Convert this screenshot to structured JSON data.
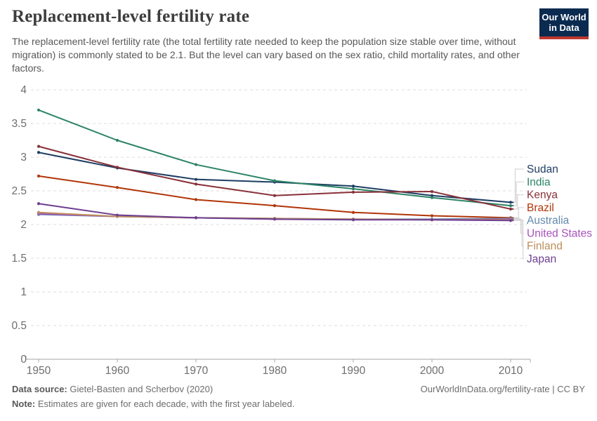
{
  "header": {
    "title": "Replacement-level fertility rate",
    "subtitle": "The replacement-level fertility rate (the total fertility rate needed to keep the population size stable over time, without migration) is commonly stated to be 2.1. But the level can vary based on the sex ratio, child mortality rates, and other factors."
  },
  "logo": {
    "line1": "Our World",
    "line2": "in Data",
    "bg": "#0a2a50",
    "bar": "#c0372e"
  },
  "chart_data": {
    "type": "line",
    "title": "Replacement-level fertility rate",
    "xlabel": "",
    "ylabel": "",
    "x": [
      1950,
      1960,
      1970,
      1980,
      1990,
      2000,
      2010
    ],
    "xticks": [
      1950,
      1960,
      1970,
      1980,
      1990,
      2000,
      2010
    ],
    "yticks": [
      0,
      0.5,
      1,
      1.5,
      2,
      2.5,
      3,
      3.5,
      4
    ],
    "ylim": [
      0,
      4
    ],
    "xlim": [
      1950,
      2012
    ],
    "grid": "horizontal-dashed",
    "legend_position": "right",
    "marker": "circle",
    "series": [
      {
        "name": "Sudan",
        "color": "#1d3d63",
        "values": [
          3.07,
          2.84,
          2.67,
          2.63,
          2.57,
          2.43,
          2.33
        ]
      },
      {
        "name": "India",
        "color": "#2c8465",
        "values": [
          3.7,
          3.25,
          2.89,
          2.65,
          2.53,
          2.4,
          2.28
        ]
      },
      {
        "name": "Kenya",
        "color": "#883039",
        "values": [
          3.16,
          2.85,
          2.6,
          2.43,
          2.48,
          2.49,
          2.23
        ]
      },
      {
        "name": "Brazil",
        "color": "#b13507",
        "values": [
          2.72,
          2.55,
          2.37,
          2.28,
          2.18,
          2.13,
          2.1
        ]
      },
      {
        "name": "Australia",
        "color": "#6389ae",
        "values": [
          2.15,
          2.12,
          2.1,
          2.09,
          2.08,
          2.08,
          2.09
        ]
      },
      {
        "name": "United States",
        "color": "#a652ba",
        "values": [
          2.16,
          2.12,
          2.1,
          2.08,
          2.08,
          2.07,
          2.08
        ]
      },
      {
        "name": "Finland",
        "color": "#bc8e5a",
        "values": [
          2.18,
          2.12,
          2.1,
          2.09,
          2.08,
          2.07,
          2.07
        ]
      },
      {
        "name": "Japan",
        "color": "#6d3e91",
        "values": [
          2.31,
          2.14,
          2.1,
          2.08,
          2.07,
          2.07,
          2.06
        ]
      }
    ],
    "axis_color": "#a5a5a5",
    "grid_color": "#dedede",
    "tick_label_color": "#6e6e6e",
    "leader_color": "#d6d6d6"
  },
  "footer": {
    "source_label": "Data source:",
    "source_text": " Gietel-Basten and Scherbov (2020)",
    "note_label": "Note:",
    "note_text": " Estimates are given for each decade, with the first year labeled.",
    "rights": "OurWorldInData.org/fertility-rate | CC BY"
  }
}
